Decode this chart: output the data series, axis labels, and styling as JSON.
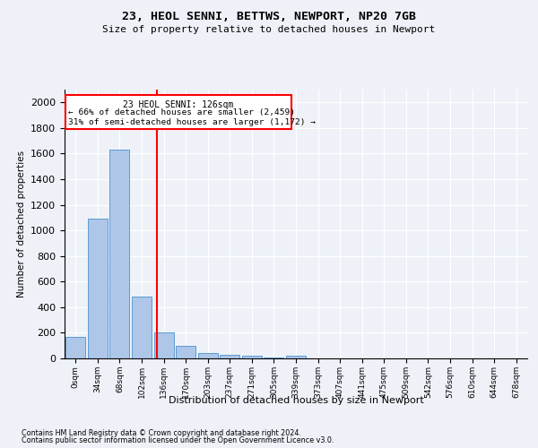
{
  "title_line1": "23, HEOL SENNI, BETTWS, NEWPORT, NP20 7GB",
  "title_line2": "Size of property relative to detached houses in Newport",
  "xlabel": "Distribution of detached houses by size in Newport",
  "ylabel": "Number of detached properties",
  "footnote1": "Contains HM Land Registry data © Crown copyright and database right 2024.",
  "footnote2": "Contains public sector information licensed under the Open Government Licence v3.0.",
  "bar_labels": [
    "0sqm",
    "34sqm",
    "68sqm",
    "102sqm",
    "136sqm",
    "170sqm",
    "203sqm",
    "237sqm",
    "271sqm",
    "305sqm",
    "339sqm",
    "373sqm",
    "407sqm",
    "441sqm",
    "475sqm",
    "509sqm",
    "542sqm",
    "576sqm",
    "610sqm",
    "644sqm",
    "678sqm"
  ],
  "bar_values": [
    165,
    1090,
    1630,
    480,
    200,
    100,
    45,
    25,
    20,
    10,
    20,
    0,
    0,
    0,
    0,
    0,
    0,
    0,
    0,
    0,
    0
  ],
  "bar_color": "#aec6e8",
  "bar_edgecolor": "#5b9bd5",
  "ylim": [
    0,
    2100
  ],
  "yticks": [
    0,
    200,
    400,
    600,
    800,
    1000,
    1200,
    1400,
    1600,
    1800,
    2000
  ],
  "property_label": "23 HEOL SENNI: 126sqm",
  "annotation_line1": "← 66% of detached houses are smaller (2,459)",
  "annotation_line2": "31% of semi-detached houses are larger (1,172) →",
  "background_color": "#eef2f8",
  "grid_color": "#ffffff"
}
